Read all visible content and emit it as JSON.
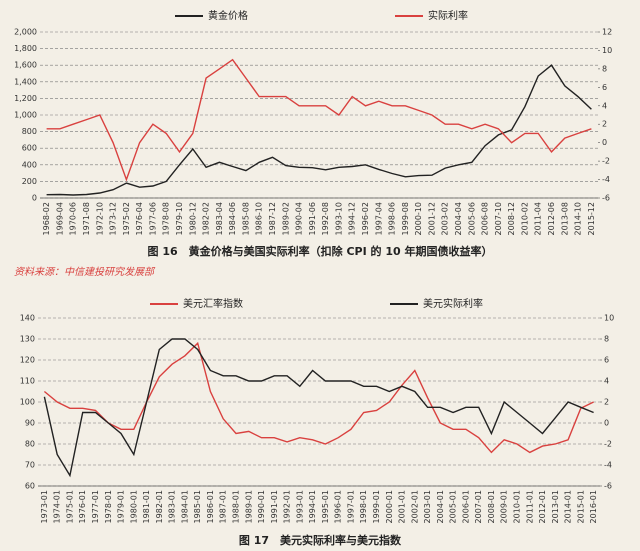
{
  "chart_data": [
    {
      "type": "line",
      "caption": "图 16　黄金价格与美国实际利率（扣除 CPI 的 10 年期国债收益率）",
      "categories": [
        "1968-02",
        "1969-04",
        "1970-06",
        "1971-08",
        "1972-10",
        "1973-12",
        "1975-02",
        "1976-04",
        "1977-06",
        "1978-08",
        "1979-10",
        "1980-12",
        "1982-02",
        "1983-04",
        "1984-06",
        "1985-08",
        "1986-10",
        "1987-12",
        "1989-02",
        "1990-04",
        "1991-06",
        "1992-08",
        "1993-10",
        "1994-12",
        "1996-02",
        "1997-04",
        "1998-06",
        "1999-08",
        "2000-10",
        "2001-12",
        "2003-02",
        "2004-04",
        "2005-06",
        "2006-08",
        "2007-10",
        "2008-12",
        "2010-02",
        "2011-04",
        "2012-06",
        "2013-08",
        "2014-10",
        "2015-12"
      ],
      "series": [
        {
          "name": "黄金价格",
          "color": "#222222",
          "axis": "y",
          "values": [
            40,
            42,
            36,
            42,
            60,
            100,
            180,
            130,
            145,
            200,
            400,
            590,
            370,
            430,
            380,
            330,
            430,
            490,
            390,
            370,
            365,
            340,
            370,
            380,
            400,
            345,
            295,
            255,
            270,
            275,
            360,
            400,
            430,
            630,
            760,
            820,
            1100,
            1470,
            1600,
            1350,
            1220,
            1070
          ]
        },
        {
          "name": "实际利率",
          "color": "#d9413f",
          "axis": "y2",
          "values": [
            1.5,
            1.5,
            2,
            2.5,
            3,
            0,
            -4,
            0,
            2,
            1,
            -1,
            1,
            7,
            8,
            9,
            7,
            5,
            5,
            5,
            4,
            4,
            4,
            3,
            5,
            4,
            4.5,
            4,
            4,
            3.5,
            3,
            2,
            2,
            1.5,
            2,
            1.5,
            0,
            1,
            1,
            -1,
            0.5,
            1,
            1.5
          ]
        }
      ],
      "ylim": [
        0,
        2000
      ],
      "yticks": [
        0,
        200,
        400,
        600,
        800,
        {
          "value": 1000,
          "label": "1,000"
        },
        {
          "value": 1200,
          "label": "1,200"
        },
        {
          "value": 1400,
          "label": "1,400"
        },
        {
          "value": 1600,
          "label": "1,600"
        },
        {
          "value": 1800,
          "label": "1,800"
        },
        {
          "value": 2000,
          "label": "2,000"
        }
      ],
      "y2lim": [
        -6,
        12
      ],
      "y2ticks": [
        -6,
        -4,
        -2,
        0,
        2,
        4,
        6,
        8,
        10,
        12
      ],
      "grid": true
    },
    {
      "type": "line",
      "caption": "图 17　美元实际利率与美元指数",
      "categories": [
        "1973-01",
        "1974-01",
        "1975-01",
        "1976-01",
        "1977-01",
        "1978-01",
        "1979-01",
        "1980-01",
        "1981-01",
        "1982-01",
        "1983-01",
        "1984-01",
        "1985-01",
        "1986-01",
        "1987-01",
        "1988-01",
        "1989-01",
        "1990-01",
        "1991-01",
        "1992-01",
        "1993-01",
        "1994-01",
        "1995-01",
        "1996-01",
        "1997-01",
        "1998-01",
        "1999-01",
        "2000-01",
        "2001-01",
        "2002-01",
        "2003-01",
        "2004-01",
        "2005-01",
        "2006-01",
        "2007-01",
        "2008-01",
        "2009-01",
        "2010-01",
        "2011-01",
        "2012-01",
        "2013-01",
        "2014-01",
        "2015-01",
        "2016-01"
      ],
      "series": [
        {
          "name": "美元汇率指数",
          "color": "#d9413f",
          "axis": "y",
          "values": [
            105,
            100,
            97,
            97,
            96,
            90,
            87,
            87,
            100,
            112,
            118,
            122,
            128,
            105,
            92,
            85,
            86,
            83,
            83,
            81,
            83,
            82,
            80,
            83,
            87,
            95,
            96,
            100,
            108,
            115,
            102,
            90,
            87,
            87,
            83,
            76,
            82,
            80,
            76,
            79,
            80,
            82,
            97,
            100
          ]
        },
        {
          "name": "美元实际利率",
          "color": "#222222",
          "axis": "y2",
          "values": [
            2.5,
            -3,
            -5,
            1,
            1,
            0,
            -1,
            -3,
            2,
            7,
            8,
            8,
            7,
            5,
            4.5,
            4.5,
            4,
            4,
            4.5,
            4.5,
            3.5,
            5,
            4,
            4,
            4,
            3.5,
            3.5,
            3,
            3.5,
            3,
            1.5,
            1.5,
            1,
            1.5,
            1.5,
            -1,
            2,
            1,
            0,
            -1,
            0.5,
            2,
            1.5,
            1
          ]
        }
      ],
      "ylim": [
        60,
        140
      ],
      "yticks": [
        60,
        70,
        80,
        90,
        100,
        110,
        120,
        130,
        140
      ],
      "y2lim": [
        -6,
        10
      ],
      "y2ticks": [
        -6,
        -4,
        -2,
        0,
        2,
        4,
        6,
        8,
        10
      ],
      "grid": true
    }
  ],
  "source": "资料来源：中信建投研究发展部"
}
